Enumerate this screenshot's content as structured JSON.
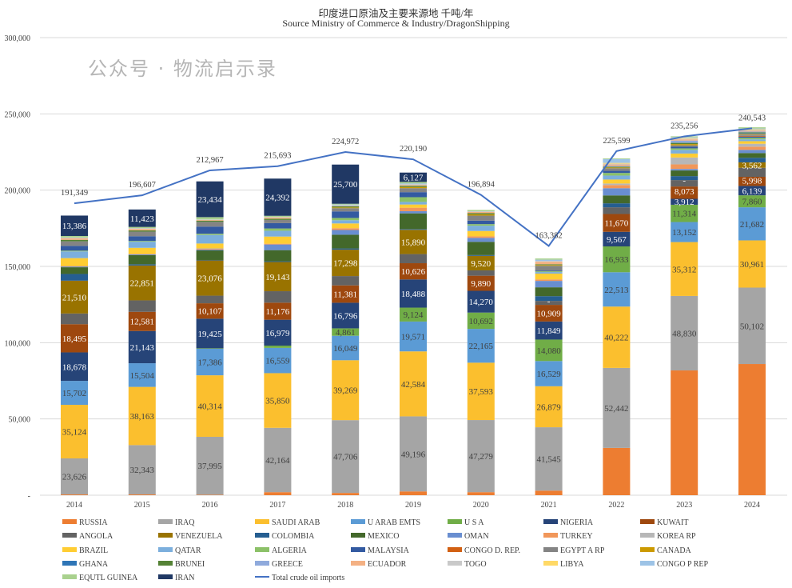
{
  "chart_data": {
    "type": "bar",
    "stacked": true,
    "title": "印度进口原油及主要来源地 千吨/年",
    "subtitle": "Source Ministry of Commerce & Industry/DragonShipping",
    "xlabel": "",
    "ylabel": "",
    "ylim": [
      0,
      300000
    ],
    "yticks": [
      "-",
      "50,000",
      "100,000",
      "150,000",
      "200,000",
      "250,000",
      "300,000"
    ],
    "grid": true,
    "legend_position": "bottom",
    "categories": [
      "2014",
      "2015",
      "2016",
      "2017",
      "2018",
      "2019",
      "2020",
      "2021",
      "2022",
      "2023",
      "2024"
    ],
    "series": [
      {
        "name": "RUSSIA",
        "color": "#ED7D31",
        "values": [
          500,
          500,
          300,
          2000,
          1500,
          2500,
          2000,
          3000,
          31000,
          81800,
          86000
        ]
      },
      {
        "name": "IRAQ",
        "color": "#A5A5A5",
        "values": [
          23626,
          32343,
          37995,
          42164,
          47706,
          49196,
          47279,
          41545,
          52442,
          48830,
          50102
        ]
      },
      {
        "name": "SAUDI ARAB",
        "color": "#FBBF2E",
        "values": [
          35124,
          38163,
          40314,
          35850,
          39269,
          42584,
          37593,
          26879,
          40222,
          35312,
          30961
        ]
      },
      {
        "name": "U ARAB EMTS",
        "color": "#5B9BD5",
        "values": [
          15702,
          15504,
          17386,
          16559,
          16049,
          19571,
          22165,
          16529,
          22513,
          13152,
          21682
        ]
      },
      {
        "name": "U S A",
        "color": "#70AD47",
        "values": [
          0,
          0,
          300,
          1500,
          4861,
          9124,
          10692,
          14080,
          16933,
          11314,
          7860
        ]
      },
      {
        "name": "NIGERIA",
        "color": "#264478",
        "values": [
          18678,
          21143,
          19425,
          16979,
          16796,
          18488,
          14270,
          11849,
          9567,
          3912,
          6139
        ]
      },
      {
        "name": "KUWAIT",
        "color": "#9E480E",
        "values": [
          18495,
          12581,
          10107,
          11176,
          11381,
          10626,
          9890,
          10909,
          11670,
          8073,
          5998
        ]
      },
      {
        "name": "ANGOLA",
        "color": "#636363",
        "values": [
          7000,
          7500,
          5000,
          7500,
          6100,
          6000,
          3500,
          2600,
          4400,
          4200,
          5900
        ]
      },
      {
        "name": "VENEZUELA",
        "color": "#997300",
        "values": [
          21510,
          22851,
          23076,
          19143,
          17298,
          15890,
          9520,
          0,
          0,
          0,
          3562
        ]
      },
      {
        "name": "COLOMBIA",
        "color": "#255E91",
        "values": [
          4400,
          800,
          300,
          500,
          800,
          500,
          500,
          3100,
          2600,
          2600,
          3000
        ]
      },
      {
        "name": "MEXICO",
        "color": "#43682B",
        "values": [
          4400,
          6000,
          6300,
          7300,
          9000,
          10300,
          8700,
          5800,
          5200,
          3700,
          3100
        ]
      },
      {
        "name": "OMAN",
        "color": "#698ED0",
        "values": [
          500,
          500,
          500,
          3700,
          3100,
          1400,
          2600,
          4200,
          4700,
          1000,
          2100
        ]
      },
      {
        "name": "TURKEY",
        "color": "#F1975A",
        "values": [
          300,
          300,
          500,
          500,
          1200,
          2300,
          1000,
          1000,
          2100,
          3000,
          2100
        ]
      },
      {
        "name": "KOREA RP",
        "color": "#B7B7B7",
        "values": [
          0,
          0,
          300,
          0,
          0,
          0,
          0,
          0,
          1000,
          4500,
          1900
        ]
      },
      {
        "name": "BRAZIL",
        "color": "#FFCD33",
        "values": [
          5200,
          4000,
          3200,
          4700,
          3100,
          2100,
          3500,
          3800,
          2600,
          2600,
          1700
        ]
      },
      {
        "name": "QATAR",
        "color": "#7CAFDD",
        "values": [
          4400,
          4000,
          5600,
          3800,
          2100,
          1700,
          3500,
          1000,
          2600,
          2400,
          1200
        ]
      },
      {
        "name": "ALGERIA",
        "color": "#8CC168",
        "values": [
          500,
          500,
          800,
          1500,
          1500,
          3100,
          1000,
          500,
          1700,
          1000,
          1000
        ]
      },
      {
        "name": "MALAYSIA",
        "color": "#335AA1",
        "values": [
          3100,
          3100,
          4700,
          3500,
          4300,
          3300,
          2300,
          500,
          1400,
          1000,
          800
        ]
      },
      {
        "name": "CONGO D. REP.",
        "color": "#D26012",
        "values": [
          0,
          0,
          0,
          0,
          0,
          0,
          0,
          0,
          0,
          0,
          500
        ]
      },
      {
        "name": "EGYPT A RP",
        "color": "#848484",
        "values": [
          3000,
          3000,
          3100,
          2100,
          2100,
          2600,
          3300,
          3100,
          1700,
          1000,
          800
        ]
      },
      {
        "name": "CANADA",
        "color": "#CC9A00",
        "values": [
          0,
          0,
          0,
          0,
          500,
          800,
          800,
          500,
          500,
          800,
          500
        ]
      },
      {
        "name": "GHANA",
        "color": "#2E75B6",
        "values": [
          0,
          0,
          0,
          0,
          0,
          0,
          0,
          0,
          0,
          0,
          500
        ]
      },
      {
        "name": "BRUNEI",
        "color": "#548235",
        "values": [
          1000,
          800,
          800,
          800,
          800,
          800,
          800,
          500,
          500,
          800,
          500
        ]
      },
      {
        "name": "GREECE",
        "color": "#8FAADC",
        "values": [
          0,
          0,
          0,
          0,
          0,
          0,
          0,
          0,
          500,
          1500,
          500
        ]
      },
      {
        "name": "ECUADOR",
        "color": "#F4B183",
        "values": [
          1000,
          1000,
          500,
          800,
          300,
          500,
          800,
          1700,
          1000,
          800,
          500
        ]
      },
      {
        "name": "TOGO",
        "color": "#C9C9C9",
        "values": [
          500,
          500,
          300,
          300,
          300,
          500,
          500,
          500,
          500,
          500,
          500
        ]
      },
      {
        "name": "LIBYA",
        "color": "#FFD966",
        "values": [
          0,
          0,
          0,
          0,
          0,
          0,
          0,
          0,
          500,
          500,
          500
        ]
      },
      {
        "name": "CONGO P REP",
        "color": "#9DC3E6",
        "values": [
          0,
          0,
          0,
          0,
          500,
          500,
          0,
          800,
          2500,
          500,
          500
        ]
      },
      {
        "name": "EQUTL GUINEA",
        "color": "#A9D18E",
        "values": [
          1000,
          800,
          1500,
          800,
          500,
          1000,
          800,
          800,
          500,
          500,
          800
        ]
      },
      {
        "name": "IRAN",
        "color": "#203864",
        "values": [
          13386,
          11423,
          23434,
          24392,
          25700,
          6127,
          0,
          0,
          0,
          0,
          0
        ]
      }
    ],
    "line_series": {
      "name": "Total crude oil imports",
      "color": "#4472C4",
      "values": [
        191349,
        196607,
        212967,
        215693,
        224972,
        220190,
        196894,
        163382,
        225599,
        235256,
        240543
      ],
      "labels": [
        "191,349",
        "196,607",
        "212,967",
        "215,693",
        "224,972",
        "220,190",
        "196,894",
        "163,382",
        "225,599",
        "235,256",
        "240,543"
      ]
    },
    "data_labels": {
      "IRAQ": [
        "23,626",
        "32,343",
        "37,995",
        "42,164",
        "47,706",
        "49,196",
        "47,279",
        "41,545",
        "52,442",
        "48,830",
        "50,102"
      ],
      "SAUDI ARAB": [
        "35,124",
        "38,163",
        "40,314",
        "35,850",
        "39,269",
        "42,584",
        "37,593",
        "26,879",
        "40,222",
        "35,312",
        "30,961"
      ],
      "U ARAB EMTS": [
        "15,702",
        "15,504",
        "17,386",
        "16,559",
        "16,049",
        "19,571",
        "22,165",
        "16,529",
        "22,513",
        "13,152",
        "21,682"
      ],
      "U S A": [
        null,
        null,
        null,
        null,
        "4,861",
        "9,124",
        "10,692",
        "14,080",
        "16,933",
        "11,314",
        "7,860"
      ],
      "NIGERIA": [
        "18,678",
        "21,143",
        "19,425",
        "16,979",
        "16,796",
        "18,488",
        "14,270",
        "11,849",
        "9,567",
        "3,912",
        "6,139"
      ],
      "KUWAIT": [
        "18,495",
        "12,581",
        "10,107",
        "11,176",
        "11,381",
        "10,626",
        "9,890",
        "10,909",
        "11,670",
        "8,073",
        "5,998"
      ],
      "VENEZUELA": [
        "21,510",
        "22,851",
        "23,076",
        "19,143",
        "17,298",
        "15,890",
        "9,520",
        "-",
        null,
        "-",
        "3,562"
      ],
      "IRAN": [
        "13,386",
        "11,423",
        "23,434",
        "24,392",
        "25,700",
        "6,127",
        null,
        null,
        null,
        null,
        null
      ]
    }
  },
  "watermark": "公众号 · 物流启示录"
}
